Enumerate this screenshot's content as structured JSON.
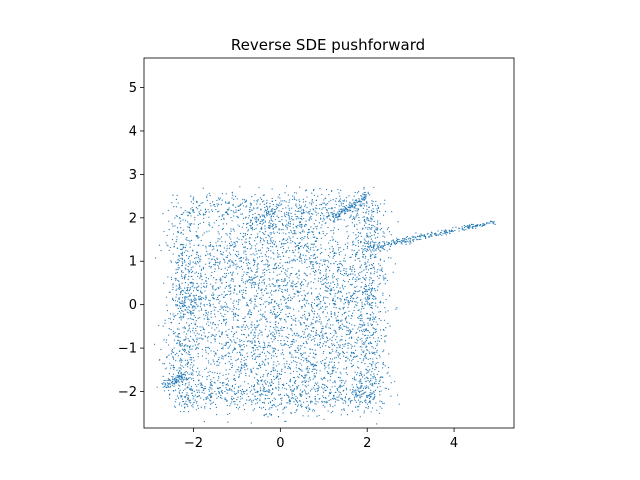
{
  "chart_data": {
    "type": "scatter",
    "title": "Reverse SDE pushforward",
    "xlabel": "",
    "ylabel": "",
    "xlim": [
      -3.14,
      5.38
    ],
    "ylim": [
      -2.84,
      5.68
    ],
    "xticks": [
      -2,
      0,
      2,
      4
    ],
    "yticks": [
      -2,
      -1,
      0,
      1,
      2,
      3,
      4,
      5
    ],
    "xtick_labels": [
      "−2",
      "0",
      "2",
      "4"
    ],
    "ytick_labels": [
      "−2",
      "−1",
      "0",
      "1",
      "2",
      "3",
      "4",
      "5"
    ],
    "grid": false,
    "legend": "none",
    "aspect": "equal",
    "marker": "dot",
    "color": "#1f77b4",
    "point_count_approx": 8000,
    "distribution": "noisy square-like swirl centered at origin with points in roughly [-2.6,2.6]x[-2.5,2.5]; arms at corners; a thin tail extends toward (4.9, 1.9)",
    "tail_points": [
      [
        2.7,
        1.45
      ],
      [
        3.0,
        1.52
      ],
      [
        3.3,
        1.58
      ],
      [
        3.6,
        1.62
      ],
      [
        3.9,
        1.68
      ],
      [
        4.2,
        1.74
      ],
      [
        4.5,
        1.8
      ],
      [
        4.8,
        1.88
      ],
      [
        4.95,
        1.85
      ]
    ],
    "outliers": [
      [
        -2.7,
        -1.9
      ],
      [
        -2.6,
        -1.8
      ],
      [
        1.1,
        -2.45
      ],
      [
        1.9,
        2.55
      ],
      [
        1.7,
        2.5
      ]
    ]
  }
}
